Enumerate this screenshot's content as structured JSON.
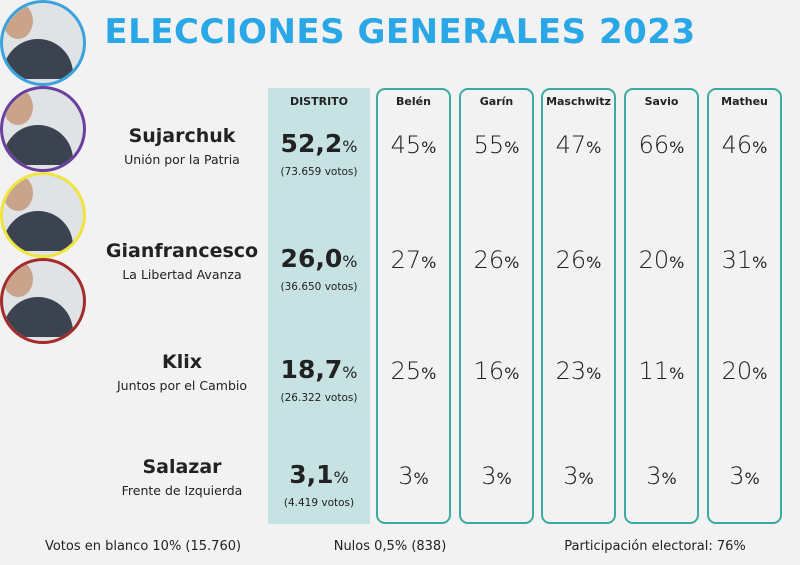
{
  "title": "ELECCIONES GENERALES 2023",
  "table": {
    "unit": "%",
    "district_header": "DISTRITO",
    "localities": [
      "Belén",
      "Garín",
      "Maschwitz",
      "Savio",
      "Matheu"
    ],
    "candidates": [
      {
        "name": "Sujarchuk",
        "party": "Unión por la Patria",
        "district": "52,2",
        "votes": "(73.659 votos)",
        "results": [
          "45",
          "55",
          "47",
          "66",
          "46"
        ]
      },
      {
        "name": "Gianfrancesco",
        "party": "La Libertad Avanza",
        "district": "26,0",
        "votes": "(36.650 votos)",
        "results": [
          "27",
          "26",
          "26",
          "20",
          "31"
        ]
      },
      {
        "name": "Klix",
        "party": "Juntos por el Cambio",
        "district": "18,7",
        "votes": "(26.322 votos)",
        "results": [
          "25",
          "16",
          "23",
          "11",
          "20"
        ]
      },
      {
        "name": "Salazar",
        "party": "Frente de Izquierda",
        "district": "3,1",
        "votes": "(4.419 votos)",
        "results": [
          "3",
          "3",
          "3",
          "3",
          "3"
        ]
      }
    ]
  },
  "footer": [
    "Votos en blanco 10% (15.760)",
    "Nulos 0,5% (838)",
    "Participación electoral: 76%"
  ]
}
